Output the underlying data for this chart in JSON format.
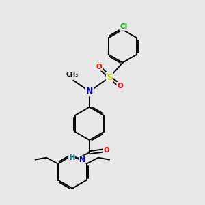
{
  "background_color": "#e8e8e8",
  "atom_colors": {
    "N": "#0000cd",
    "O": "#ff0000",
    "S": "#cccc00",
    "Cl": "#00bb00",
    "C": "#000000",
    "H": "#008080"
  },
  "bond_color": "#000000",
  "bond_width": 1.4,
  "fig_width": 3.0,
  "fig_height": 3.0,
  "dpi": 100
}
